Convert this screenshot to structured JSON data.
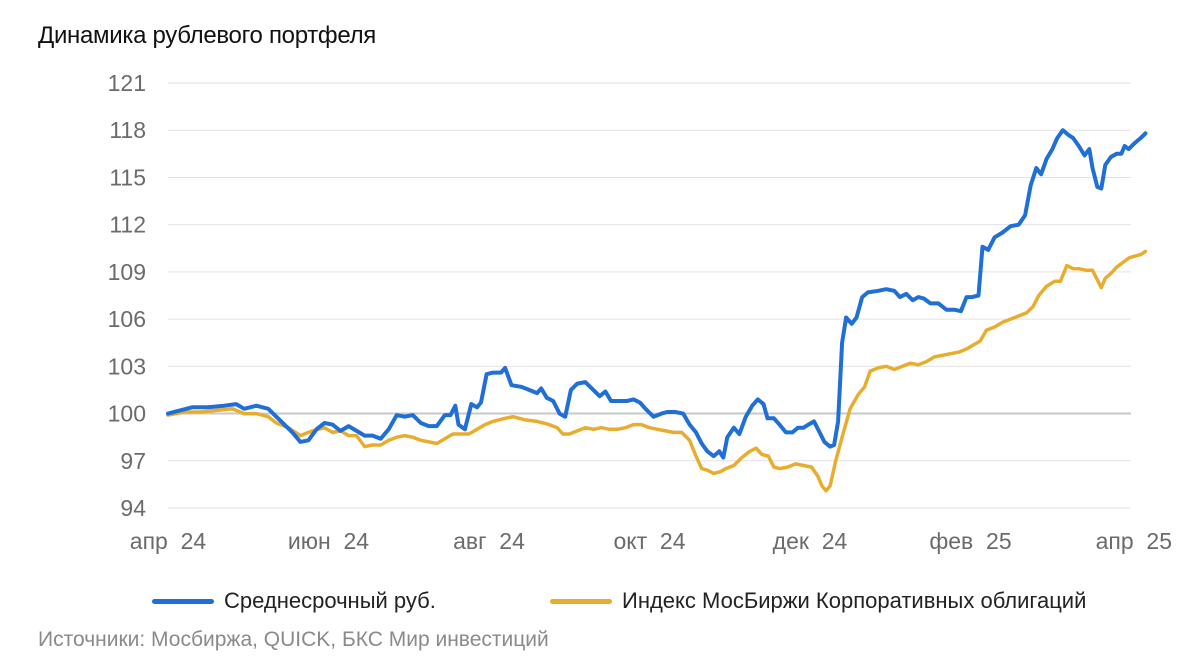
{
  "chart_data": {
    "type": "line",
    "title": "Динамика рублевого портфеля",
    "source": "Источники: Мосбиржа, QUICK, БКС Мир инвестиций",
    "ylim": [
      94,
      121
    ],
    "yticks": [
      94,
      97,
      100,
      103,
      106,
      109,
      112,
      115,
      118,
      121
    ],
    "xlim": [
      0,
      12
    ],
    "xticks": [
      {
        "label": "апр  24",
        "x": 0
      },
      {
        "label": "июн  24",
        "x": 2
      },
      {
        "label": "авг  24",
        "x": 4
      },
      {
        "label": "окт  24",
        "x": 6
      },
      {
        "label": "дек  24",
        "x": 8
      },
      {
        "label": "фев  25",
        "x": 10
      },
      {
        "label": "апр  25",
        "x": 12
      }
    ],
    "grid": true,
    "reference_line": 100,
    "legend_position": "bottom",
    "series": [
      {
        "name": "Среднесрочный руб.",
        "color": "#1f6fd6",
        "points": [
          [
            0.0,
            100.0
          ],
          [
            0.15,
            100.2
          ],
          [
            0.3,
            100.4
          ],
          [
            0.5,
            100.4
          ],
          [
            0.7,
            100.5
          ],
          [
            0.85,
            100.6
          ],
          [
            0.95,
            100.3
          ],
          [
            1.1,
            100.5
          ],
          [
            1.25,
            100.3
          ],
          [
            1.35,
            99.8
          ],
          [
            1.45,
            99.3
          ],
          [
            1.55,
            98.8
          ],
          [
            1.65,
            98.2
          ],
          [
            1.75,
            98.3
          ],
          [
            1.85,
            99.0
          ],
          [
            1.95,
            99.4
          ],
          [
            2.05,
            99.3
          ],
          [
            2.15,
            98.9
          ],
          [
            2.25,
            99.2
          ],
          [
            2.35,
            98.9
          ],
          [
            2.45,
            98.6
          ],
          [
            2.55,
            98.6
          ],
          [
            2.65,
            98.4
          ],
          [
            2.75,
            99.0
          ],
          [
            2.85,
            99.9
          ],
          [
            2.95,
            99.8
          ],
          [
            3.05,
            99.9
          ],
          [
            3.15,
            99.4
          ],
          [
            3.25,
            99.2
          ],
          [
            3.35,
            99.2
          ],
          [
            3.45,
            99.9
          ],
          [
            3.52,
            99.9
          ],
          [
            3.58,
            100.5
          ],
          [
            3.62,
            99.3
          ],
          [
            3.7,
            99.0
          ],
          [
            3.78,
            100.6
          ],
          [
            3.85,
            100.4
          ],
          [
            3.9,
            100.7
          ],
          [
            3.97,
            102.5
          ],
          [
            4.05,
            102.6
          ],
          [
            4.15,
            102.6
          ],
          [
            4.2,
            102.9
          ],
          [
            4.28,
            101.8
          ],
          [
            4.4,
            101.7
          ],
          [
            4.5,
            101.5
          ],
          [
            4.6,
            101.3
          ],
          [
            4.65,
            101.6
          ],
          [
            4.72,
            101.0
          ],
          [
            4.8,
            100.8
          ],
          [
            4.88,
            100.0
          ],
          [
            4.95,
            99.8
          ],
          [
            5.02,
            101.5
          ],
          [
            5.1,
            101.9
          ],
          [
            5.2,
            102.0
          ],
          [
            5.3,
            101.5
          ],
          [
            5.38,
            101.1
          ],
          [
            5.45,
            101.4
          ],
          [
            5.52,
            100.8
          ],
          [
            5.62,
            100.8
          ],
          [
            5.72,
            100.8
          ],
          [
            5.8,
            100.9
          ],
          [
            5.88,
            100.7
          ],
          [
            5.95,
            100.3
          ],
          [
            6.05,
            99.8
          ],
          [
            6.15,
            100.0
          ],
          [
            6.22,
            100.1
          ],
          [
            6.32,
            100.1
          ],
          [
            6.42,
            100.0
          ],
          [
            6.5,
            99.3
          ],
          [
            6.58,
            98.8
          ],
          [
            6.65,
            98.1
          ],
          [
            6.72,
            97.6
          ],
          [
            6.8,
            97.3
          ],
          [
            6.87,
            97.6
          ],
          [
            6.92,
            97.2
          ],
          [
            6.97,
            98.5
          ],
          [
            7.05,
            99.1
          ],
          [
            7.12,
            98.7
          ],
          [
            7.2,
            99.8
          ],
          [
            7.28,
            100.5
          ],
          [
            7.35,
            100.9
          ],
          [
            7.42,
            100.6
          ],
          [
            7.47,
            99.7
          ],
          [
            7.55,
            99.7
          ],
          [
            7.62,
            99.3
          ],
          [
            7.7,
            98.8
          ],
          [
            7.78,
            98.8
          ],
          [
            7.85,
            99.1
          ],
          [
            7.92,
            99.1
          ],
          [
            7.98,
            99.3
          ],
          [
            8.05,
            99.5
          ],
          [
            8.12,
            98.8
          ],
          [
            8.18,
            98.2
          ],
          [
            8.25,
            97.9
          ],
          [
            8.3,
            98.0
          ],
          [
            8.35,
            99.5
          ],
          [
            8.4,
            104.5
          ],
          [
            8.45,
            106.1
          ],
          [
            8.52,
            105.7
          ],
          [
            8.58,
            106.1
          ],
          [
            8.65,
            107.4
          ],
          [
            8.72,
            107.7
          ],
          [
            8.85,
            107.8
          ],
          [
            8.95,
            107.9
          ],
          [
            9.05,
            107.8
          ],
          [
            9.12,
            107.4
          ],
          [
            9.2,
            107.6
          ],
          [
            9.28,
            107.2
          ],
          [
            9.35,
            107.4
          ],
          [
            9.42,
            107.3
          ],
          [
            9.5,
            107.0
          ],
          [
            9.6,
            107.0
          ],
          [
            9.7,
            106.6
          ],
          [
            9.8,
            106.6
          ],
          [
            9.88,
            106.5
          ],
          [
            9.95,
            107.4
          ],
          [
            10.02,
            107.4
          ],
          [
            10.1,
            107.5
          ],
          [
            10.15,
            110.6
          ],
          [
            10.22,
            110.4
          ],
          [
            10.3,
            111.2
          ],
          [
            10.4,
            111.5
          ],
          [
            10.5,
            111.9
          ],
          [
            10.6,
            112.0
          ],
          [
            10.68,
            112.6
          ],
          [
            10.75,
            114.5
          ],
          [
            10.82,
            115.6
          ],
          [
            10.88,
            115.2
          ],
          [
            10.95,
            116.2
          ],
          [
            11.02,
            116.8
          ],
          [
            11.08,
            117.5
          ],
          [
            11.15,
            118.0
          ],
          [
            11.22,
            117.7
          ],
          [
            11.28,
            117.5
          ],
          [
            11.35,
            117.0
          ],
          [
            11.42,
            116.4
          ],
          [
            11.48,
            116.8
          ],
          [
            11.52,
            115.6
          ],
          [
            11.58,
            114.4
          ],
          [
            11.63,
            114.3
          ],
          [
            11.68,
            115.8
          ],
          [
            11.75,
            116.3
          ],
          [
            11.82,
            116.5
          ],
          [
            11.88,
            116.5
          ],
          [
            11.92,
            117.0
          ],
          [
            11.97,
            116.8
          ],
          [
            12.05,
            117.2
          ],
          [
            12.12,
            117.5
          ],
          [
            12.18,
            117.8
          ]
        ]
      },
      {
        "name": "Индекс МосБиржи Корпоративных облигаций",
        "color": "#e8ad2e",
        "points": [
          [
            0.0,
            99.9
          ],
          [
            0.2,
            100.1
          ],
          [
            0.4,
            100.1
          ],
          [
            0.6,
            100.2
          ],
          [
            0.8,
            100.3
          ],
          [
            0.95,
            100.0
          ],
          [
            1.1,
            100.0
          ],
          [
            1.25,
            99.8
          ],
          [
            1.35,
            99.4
          ],
          [
            1.5,
            99.1
          ],
          [
            1.65,
            98.6
          ],
          [
            1.8,
            98.9
          ],
          [
            1.95,
            99.1
          ],
          [
            2.05,
            98.8
          ],
          [
            2.15,
            98.9
          ],
          [
            2.25,
            98.6
          ],
          [
            2.35,
            98.6
          ],
          [
            2.45,
            97.9
          ],
          [
            2.55,
            98.0
          ],
          [
            2.65,
            98.0
          ],
          [
            2.75,
            98.3
          ],
          [
            2.85,
            98.5
          ],
          [
            2.95,
            98.6
          ],
          [
            3.05,
            98.5
          ],
          [
            3.15,
            98.3
          ],
          [
            3.25,
            98.2
          ],
          [
            3.35,
            98.1
          ],
          [
            3.45,
            98.4
          ],
          [
            3.55,
            98.7
          ],
          [
            3.65,
            98.7
          ],
          [
            3.75,
            98.7
          ],
          [
            3.85,
            99.0
          ],
          [
            3.95,
            99.3
          ],
          [
            4.05,
            99.5
          ],
          [
            4.2,
            99.7
          ],
          [
            4.3,
            99.8
          ],
          [
            4.45,
            99.6
          ],
          [
            4.6,
            99.5
          ],
          [
            4.75,
            99.3
          ],
          [
            4.85,
            99.1
          ],
          [
            4.92,
            98.7
          ],
          [
            5.0,
            98.7
          ],
          [
            5.1,
            98.9
          ],
          [
            5.2,
            99.1
          ],
          [
            5.3,
            99.0
          ],
          [
            5.4,
            99.1
          ],
          [
            5.5,
            99.0
          ],
          [
            5.6,
            99.0
          ],
          [
            5.7,
            99.1
          ],
          [
            5.8,
            99.3
          ],
          [
            5.9,
            99.3
          ],
          [
            6.0,
            99.1
          ],
          [
            6.1,
            99.0
          ],
          [
            6.2,
            98.9
          ],
          [
            6.3,
            98.8
          ],
          [
            6.4,
            98.8
          ],
          [
            6.5,
            98.3
          ],
          [
            6.58,
            97.3
          ],
          [
            6.65,
            96.5
          ],
          [
            6.72,
            96.4
          ],
          [
            6.8,
            96.2
          ],
          [
            6.88,
            96.3
          ],
          [
            6.95,
            96.5
          ],
          [
            7.05,
            96.7
          ],
          [
            7.15,
            97.2
          ],
          [
            7.25,
            97.6
          ],
          [
            7.33,
            97.8
          ],
          [
            7.4,
            97.4
          ],
          [
            7.48,
            97.3
          ],
          [
            7.55,
            96.6
          ],
          [
            7.62,
            96.5
          ],
          [
            7.72,
            96.6
          ],
          [
            7.82,
            96.8
          ],
          [
            7.92,
            96.7
          ],
          [
            8.02,
            96.6
          ],
          [
            8.1,
            96.0
          ],
          [
            8.15,
            95.4
          ],
          [
            8.2,
            95.1
          ],
          [
            8.25,
            95.4
          ],
          [
            8.32,
            97.0
          ],
          [
            8.4,
            98.5
          ],
          [
            8.5,
            100.3
          ],
          [
            8.6,
            101.2
          ],
          [
            8.68,
            101.7
          ],
          [
            8.75,
            102.7
          ],
          [
            8.85,
            102.9
          ],
          [
            8.95,
            103.0
          ],
          [
            9.05,
            102.8
          ],
          [
            9.15,
            103.0
          ],
          [
            9.25,
            103.2
          ],
          [
            9.35,
            103.1
          ],
          [
            9.45,
            103.3
          ],
          [
            9.55,
            103.6
          ],
          [
            9.65,
            103.7
          ],
          [
            9.75,
            103.8
          ],
          [
            9.85,
            103.9
          ],
          [
            9.95,
            104.1
          ],
          [
            10.05,
            104.4
          ],
          [
            10.12,
            104.6
          ],
          [
            10.2,
            105.3
          ],
          [
            10.3,
            105.5
          ],
          [
            10.4,
            105.8
          ],
          [
            10.5,
            106.0
          ],
          [
            10.6,
            106.2
          ],
          [
            10.7,
            106.4
          ],
          [
            10.78,
            106.8
          ],
          [
            10.85,
            107.5
          ],
          [
            10.95,
            108.1
          ],
          [
            11.05,
            108.4
          ],
          [
            11.12,
            108.4
          ],
          [
            11.2,
            109.4
          ],
          [
            11.28,
            109.2
          ],
          [
            11.35,
            109.2
          ],
          [
            11.45,
            109.1
          ],
          [
            11.52,
            109.1
          ],
          [
            11.58,
            108.5
          ],
          [
            11.63,
            108.0
          ],
          [
            11.68,
            108.6
          ],
          [
            11.75,
            108.9
          ],
          [
            11.82,
            109.3
          ],
          [
            11.9,
            109.6
          ],
          [
            11.98,
            109.9
          ],
          [
            12.05,
            110.0
          ],
          [
            12.12,
            110.1
          ],
          [
            12.18,
            110.3
          ]
        ]
      }
    ]
  }
}
